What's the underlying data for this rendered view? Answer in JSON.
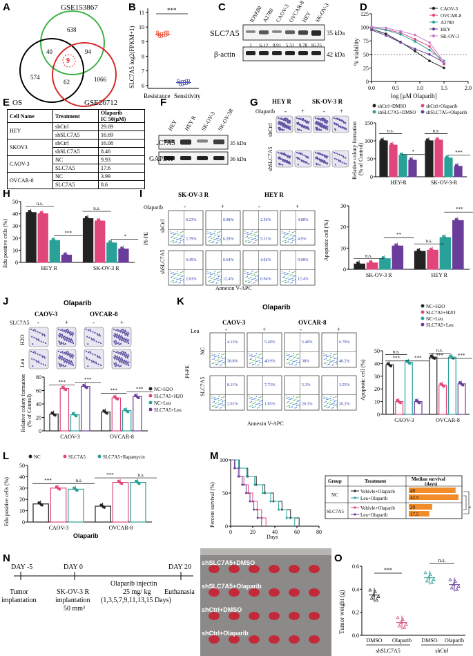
{
  "panels": {
    "A": {
      "label": "A",
      "sets": [
        "GSE153867",
        "OS",
        "GSE26712"
      ],
      "counts": [
        "638",
        "40",
        "9",
        "94",
        "574",
        "62",
        "1066"
      ]
    },
    "B": {
      "label": "B",
      "ylabel": "SLC7A5 log2(FPKM+1)",
      "yticks": [
        "6",
        "7",
        "8",
        "9",
        "10",
        "11"
      ],
      "groups": [
        "Resistance",
        "Sensitivity"
      ],
      "sig": "***"
    },
    "C": {
      "label": "C",
      "lanes": [
        "IOSE80",
        "A2780",
        "CAOV-3",
        "OVCAR-8",
        "HEY",
        "SK-OV-3"
      ],
      "protein1": "SLC7A5",
      "protein2": "β-actin",
      "kda1": "35 kDa",
      "kda2": "42 kDa",
      "quant": [
        "1",
        "6.12",
        "0.91",
        "5.31",
        "9.78",
        "16.25"
      ]
    },
    "D": {
      "label": "D",
      "ylabel": "% viability",
      "xlabel": "log [µM Olaparib]",
      "yticks": [
        "0",
        "25",
        "50",
        "75",
        "100",
        "125"
      ],
      "xticks": [
        "0.0",
        "0.5",
        "1.0",
        "1.5",
        "2.0"
      ],
      "legend": [
        "CAOV-3",
        "OVCAR-8",
        "A2780",
        "HEY",
        "SK-OV-3"
      ],
      "colors": [
        "#222222",
        "#e0457b",
        "#2aa198",
        "#6a3d9a",
        "#c77dcf"
      ]
    },
    "E": {
      "label": "E",
      "headers": {
        "cell": "Cell Name",
        "treat": "Treatment",
        "ic": "Olaparib",
        "ic2": "IC 50(µM)"
      },
      "rows": [
        {
          "cell": "HEY",
          "t1": "shCtrl",
          "v1": "29.69",
          "t2": "shSLC7A5",
          "v2": "16.69"
        },
        {
          "cell": "SKOV3",
          "t1": "shCtrl",
          "v1": "16.08",
          "t2": "shSLC7A5",
          "v2": "8.46"
        },
        {
          "cell": "CAOV-3",
          "t1": "NC",
          "v1": "9.93",
          "t2": "SLC7A5",
          "v2": "17.6"
        },
        {
          "cell": "OVCAR-8",
          "t1": "NC",
          "v1": "3.99",
          "t2": "SLC7A5",
          "v2": "8.6"
        }
      ]
    },
    "F": {
      "label": "F",
      "lanes": [
        "HEY",
        "HEY R",
        "SK-OV-3",
        "SK-OV-3R"
      ],
      "protein1": "SLC7A5",
      "protein2": "GAPDH",
      "kda1": "35 kDa",
      "kda2": "36 kDa"
    },
    "G": {
      "label": "G",
      "col1": "HEY R",
      "col2": "SK-OV-3 R",
      "drug": "Olaparib",
      "minus": "-",
      "plus": "+",
      "row1": "shCtrl",
      "row2": "shSLC7A5",
      "ylabel1": "Relative colony formation",
      "ylabel2": "(% of Control)",
      "yticks": [
        "0",
        "50",
        "100",
        "150"
      ],
      "legend": [
        "shCtrl+DMSO",
        "shCtrl+Olaparib",
        "shSLC7A5+DMSO",
        "shSLC7A5+Olaparib"
      ],
      "groups": [
        "HEY-R",
        "SK-OV-3-R"
      ],
      "sig": [
        "n.s.",
        "*",
        "n.s.",
        "***"
      ]
    },
    "H": {
      "label": "H",
      "ylabel": "Edu positive cells (%)",
      "yticks": [
        "0",
        "10",
        "20",
        "30",
        "40",
        "50"
      ],
      "groups": [
        "HEY R",
        "SK-OV-3 R"
      ],
      "sig": [
        "n.s.",
        "***",
        "n.s.",
        "*"
      ]
    },
    "I": {
      "label": "I",
      "col1": "SK-OV-3 R",
      "col2": "HEY R",
      "drug": "Olaparib",
      "row1": "shCtrl",
      "row2": "shSLC7A5",
      "yaxis": "PI-PE",
      "xaxis": "Annexin V-APC",
      "q": [
        "0.23%",
        "2.79%",
        "0.98%",
        "6.28%",
        "2.56%",
        "5.31%",
        "4.88%",
        "4.9%",
        "0.45%",
        "2.63%",
        "0.64%",
        "12.4%",
        "4.92%",
        "6.94%",
        "9.98%",
        "12.4%"
      ],
      "ylabel": "Apoptotic cell  (%)",
      "yticks": [
        "0",
        "10",
        "20",
        "30"
      ],
      "groups": [
        "SK-OV-3 R",
        "HEY R"
      ],
      "sig": [
        "n.s.",
        "**",
        "n.s.",
        "***"
      ]
    },
    "J": {
      "label": "J",
      "title": "Olaparib",
      "col1": "CAOV-3",
      "col2": "OVCAR-8",
      "drug": "SLC7A5",
      "row1": "H2O",
      "row2": "Leu",
      "ylabel1": "Relative  colony formation",
      "ylabel2": "(% of Control)",
      "yticks": [
        "0",
        "20",
        "40",
        "60",
        "80"
      ],
      "legend": [
        "NC+H2O",
        "SLC7A5+H2O",
        "NC+Leu",
        "SLC7A5+Leu"
      ],
      "groups": [
        "CAOV-3",
        "OVCAR-8"
      ],
      "sig": [
        "***",
        "***",
        "***",
        "***"
      ]
    },
    "K": {
      "label": "K",
      "title": "Olaparib",
      "col1": "CAOV-3",
      "col2": "OVCAR-8",
      "drug": "Leu",
      "row1": "NC",
      "row2": "SLC7A5",
      "yaxis": "PI-PE",
      "xaxis": "Annexin V-APC",
      "q": [
        "4.13%",
        "38.8%",
        "5.20%",
        "40.9%",
        "5.40%",
        "38%",
        "6.79%",
        "40.2%",
        "8.11%",
        "2.01%",
        "7.73%",
        "1.85%",
        "5.3%",
        "20.3%",
        "3.55%",
        "20.2%"
      ],
      "legend": [
        "NC+H2O",
        "SLC7A5+H2O",
        "NC+Leu",
        "SLC7A5+Leu"
      ],
      "ylabel": "Apoptotic cell  (%)",
      "yticks": [
        "0",
        "10",
        "20",
        "30",
        "40",
        "50"
      ],
      "groups": [
        "CAOV-3",
        "OVCAR-8"
      ],
      "sig": [
        "n.s.",
        "***",
        "***",
        "n.s.",
        "***",
        "***"
      ]
    },
    "L": {
      "label": "L",
      "legend": [
        "NC",
        "SLC7A5",
        "SLC7A5+Rapamycin"
      ],
      "ylabel": "Edu positive cells (%)",
      "yticks": [
        "0",
        "10",
        "20",
        "30",
        "40",
        "50"
      ],
      "groups": [
        "CAOV-3",
        "OVCAR-8"
      ],
      "xtitle": "Olaparib",
      "sig": [
        "***",
        "n.s.",
        "***",
        "n.s."
      ]
    },
    "M": {
      "label": "M",
      "ylabel": "Percent survival (%)",
      "xlabel": "Days",
      "yticks": [
        "0",
        "50",
        "100"
      ],
      "xticks": [
        "0",
        "20",
        "40",
        "60",
        "80"
      ],
      "table": {
        "h1": "Group",
        "h2": "Treatment",
        "h3": "Median survival",
        "h4": "(days)",
        "g1": "NC",
        "g2": "SLC7A5",
        "rows": [
          {
            "t": "Vehivle+Olaparib",
            "v": "40"
          },
          {
            "t": "Leu+Olaparib",
            "v": "42.5"
          },
          {
            "t": "Vehivle+Olaparib",
            "v": "20"
          },
          {
            "t": "Leu+Olaparib",
            "v": "17.5"
          }
        ],
        "sig": [
          "*",
          "**"
        ]
      }
    },
    "N": {
      "label": "N",
      "day1": "DAY -5",
      "day2": "DAY 0",
      "day3": "DAY 20",
      "ev1": "Tumor",
      "ev1b": "implantation",
      "ev2": "SK-OV-3 R",
      "ev2b": "implantation",
      "ev2c": "50  mm³",
      "ev3": "Olaparib injectin",
      "ev3b": "25 mg/ kg",
      "ev3c": "(1,3,5,7,9,11,13,15 Days)",
      "ev4": "Euthanasia",
      "photo_rows": [
        "shSLC7A5+DMSO",
        "shSLC7A5+Olaparib",
        "shCtrl+DMSO",
        "shCtrl+Olaparib"
      ]
    },
    "O": {
      "label": "O",
      "ylabel": "Tumor weight (g)",
      "yticks": [
        "0.0",
        "0.2",
        "0.4",
        "0.6"
      ],
      "xticks": [
        "DMSO",
        "Olaparib",
        "DMSO",
        "Olaparib"
      ],
      "groups": [
        "shSLC7A5",
        "shCtrl"
      ],
      "sig": [
        "***",
        "n.s."
      ]
    }
  },
  "chart_data": [
    {
      "type": "scatter",
      "panel": "B",
      "title": "",
      "ylabel": "SLC7A5 log2(FPKM+1)",
      "categories": [
        "Resistance",
        "Sensitivity"
      ],
      "values": [
        9.5,
        6.2
      ],
      "ylim": [
        5.8,
        11
      ]
    },
    {
      "type": "line",
      "panel": "D",
      "xlabel": "log [µM Olaparib]",
      "ylabel": "% viability",
      "x": [
        0,
        0.3,
        0.6,
        0.9,
        1.2,
        1.5
      ],
      "series": [
        {
          "name": "CAOV-3",
          "values": [
            97,
            88,
            73,
            56,
            38,
            25
          ]
        },
        {
          "name": "OVCAR-8",
          "values": [
            99,
            96,
            90,
            78,
            65,
            32
          ]
        },
        {
          "name": "A2780",
          "values": [
            100,
            95,
            87,
            74,
            58,
            38
          ]
        },
        {
          "name": "HEY",
          "values": [
            95,
            85,
            72,
            60,
            50,
            35
          ]
        },
        {
          "name": "SK-OV-3",
          "values": [
            101,
            99,
            93,
            86,
            72,
            36
          ]
        }
      ],
      "ylim": [
        0,
        125
      ]
    },
    {
      "type": "bar",
      "panel": "G",
      "categories": [
        "HEY-R",
        "SK-OV-3-R"
      ],
      "series": [
        {
          "name": "shCtrl+DMSO",
          "values": [
            100,
            100
          ]
        },
        {
          "name": "shCtrl+Olaparib",
          "values": [
            88,
            102
          ]
        },
        {
          "name": "shSLC7A5+DMSO",
          "values": [
            60,
            52
          ]
        },
        {
          "name": "shSLC7A5+Olaparib",
          "values": [
            46,
            29
          ]
        }
      ],
      "ylim": [
        0,
        150
      ]
    },
    {
      "type": "bar",
      "panel": "H",
      "categories": [
        "HEY R",
        "SK-OV-3 R"
      ],
      "series": [
        {
          "name": "shCtrl+DMSO",
          "values": [
            41,
            36
          ]
        },
        {
          "name": "shCtrl+Olaparib",
          "values": [
            40,
            34
          ]
        },
        {
          "name": "shSLC7A5+DMSO",
          "values": [
            18,
            16
          ]
        },
        {
          "name": "shSLC7A5+Olaparib",
          "values": [
            6,
            11
          ]
        }
      ],
      "ylim": [
        0,
        50
      ]
    },
    {
      "type": "bar",
      "panel": "I",
      "categories": [
        "SK-OV-3 R",
        "HEY R"
      ],
      "series": [
        {
          "name": "shCtrl+DMSO",
          "values": [
            2.5,
            8.5
          ]
        },
        {
          "name": "shCtrl+Olaparib",
          "values": [
            3,
            9
          ]
        },
        {
          "name": "shSLC7A5+DMSO",
          "values": [
            5,
            15
          ]
        },
        {
          "name": "shSLC7A5+Olaparib",
          "values": [
            11,
            23
          ]
        }
      ],
      "ylim": [
        0,
        30
      ]
    },
    {
      "type": "bar",
      "panel": "J",
      "categories": [
        "CAOV-3",
        "OVCAR-8"
      ],
      "series": [
        {
          "name": "NC+H2O",
          "values": [
            25,
            28
          ]
        },
        {
          "name": "SLC7A5+H2O",
          "values": [
            63,
            49
          ]
        },
        {
          "name": "NC+Leu",
          "values": [
            24,
            30
          ]
        },
        {
          "name": "SLC7A5+Leu",
          "values": [
            66,
            51
          ]
        }
      ],
      "ylim": [
        0,
        80
      ]
    },
    {
      "type": "bar",
      "panel": "K",
      "categories": [
        "CAOV-3",
        "OVCAR-8"
      ],
      "series": [
        {
          "name": "NC+H2O",
          "values": [
            39,
            45
          ]
        },
        {
          "name": "SLC7A5+H2O",
          "values": [
            10,
            23
          ]
        },
        {
          "name": "NC+Leu",
          "values": [
            41,
            45
          ]
        },
        {
          "name": "SLC7A5+Leu",
          "values": [
            10,
            24
          ]
        }
      ],
      "ylim": [
        0,
        50
      ]
    },
    {
      "type": "bar",
      "panel": "L",
      "categories": [
        "CAOV-3",
        "OVCAR-8"
      ],
      "series": [
        {
          "name": "NC",
          "values": [
            16,
            14
          ]
        },
        {
          "name": "SLC7A5",
          "values": [
            30,
            35
          ]
        },
        {
          "name": "SLC7A5+Rapamycin",
          "values": [
            29,
            35
          ]
        }
      ],
      "ylim": [
        0,
        50
      ]
    },
    {
      "type": "line",
      "panel": "M",
      "xlabel": "Days",
      "ylabel": "Percent survival (%)",
      "series": [
        {
          "name": "NC Vehivle+Olaparib",
          "median": 40
        },
        {
          "name": "NC Leu+Olaparib",
          "median": 42.5
        },
        {
          "name": "SLC7A5 Vehivle+Olaparib",
          "median": 20
        },
        {
          "name": "SLC7A5 Leu+Olaparib",
          "median": 17.5
        }
      ],
      "ylim": [
        0,
        100
      ]
    },
    {
      "type": "scatter",
      "panel": "O",
      "ylabel": "Tumor weight (g)",
      "categories": [
        "shSLC7A5 DMSO",
        "shSLC7A5 Olaparib",
        "shCtrl DMSO",
        "shCtrl Olaparib"
      ],
      "values": [
        0.35,
        0.11,
        0.5,
        0.44
      ],
      "ylim": [
        0,
        0.6
      ]
    }
  ]
}
